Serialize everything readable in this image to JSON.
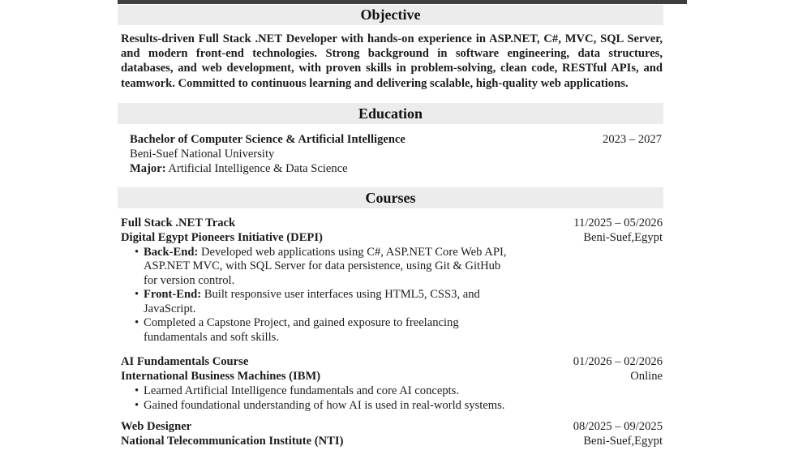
{
  "page": {
    "top_bar_color": "#3e3e3e",
    "section_header_bg": "#ececec",
    "text_color": "#1c1c1c",
    "bullet": "•"
  },
  "objective": {
    "title": "Objective",
    "body": "Results-driven Full Stack .NET Developer with hands-on experience in ASP.NET, C#, MVC, SQL Server, and modern front-end technologies. Strong background in software engineering, data structures, databases, and web development, with proven skills in problem-solving, clean code, RESTful APIs, and teamwork. Committed to continuous learning and delivering scalable, high-quality web applications."
  },
  "education": {
    "title": "Education",
    "degree": "Bachelor of Computer Science & Artificial Intelligence",
    "dates": "2023 – 2027",
    "school": "Beni-Suef National University",
    "major_label": "Major:",
    "major_value": " Artificial Intelligence & Data Science"
  },
  "courses": {
    "title": "Courses",
    "items": [
      {
        "name": "Full Stack .NET Track",
        "dates": "11/2025 – 05/2026",
        "org": "Digital Egypt Pioneers Initiative (DEPI)",
        "location": "Beni-Suef,Egypt",
        "bullets": [
          {
            "lead": "Back-End:",
            "text": "Developed web applications using C#, ASP.NET Core Web API, ASP.NET MVC, with SQL Server for data persistence, using Git & GitHub for version control."
          },
          {
            "lead": "Front-End:",
            "text": "Built responsive user interfaces using HTML5, CSS3, and JavaScript."
          },
          {
            "lead": "",
            "text": "Completed a Capstone Project, and gained exposure to freelancing fundamentals and soft skills."
          }
        ]
      },
      {
        "name": "AI Fundamentals Course",
        "dates": "01/2026 – 02/2026",
        "org": "International Business Machines (IBM)",
        "location": "Online",
        "bullets": [
          {
            "lead": "",
            "text": "Learned Artificial Intelligence fundamentals and core AI concepts."
          },
          {
            "lead": "",
            "text": "Gained foundational understanding of how AI is used in real-world systems."
          }
        ]
      },
      {
        "name": "Web Designer",
        "dates": "08/2025 – 09/2025",
        "org": "National Telecommunication Institute (NTI)",
        "location": "Beni-Suef,Egypt",
        "bullets": []
      }
    ]
  }
}
